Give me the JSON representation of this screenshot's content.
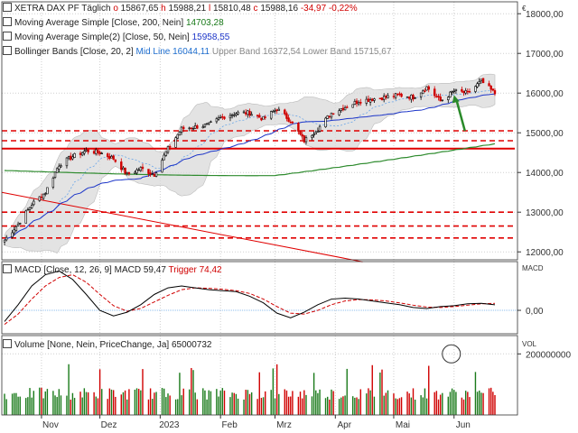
{
  "header": {
    "symbol": "XETRA DAX PF",
    "interval": "Täglich",
    "o_label": "o",
    "o_value": "15867,65",
    "h_label": "h",
    "h_value": "15988,21",
    "l_label": "l",
    "l_value": "15810,48",
    "c_label": "c",
    "c_value": "15988,16",
    "change": "-34,97",
    "change_pct": "-0,22%"
  },
  "legend": {
    "ma200_label": "Moving Average Simple",
    "ma200_params": "[Close, 200, Nein]",
    "ma200_value": "14703,28",
    "ma50_label": "Moving Average Simple(2)",
    "ma50_params": "[Close, 50, Nein]",
    "ma50_value": "15958,55",
    "bb_label": "Bollinger Bands",
    "bb_params": "[Close, 20, 2]",
    "bb_mid_label": "Mid Line",
    "bb_mid_value": "16044,11",
    "bb_upper_label": "Upper Band",
    "bb_upper_value": "16372,54",
    "bb_lower_label": "Lower Band",
    "bb_lower_value": "15715,67",
    "macd_label": "MACD",
    "macd_params": "[Close, 12, 26, 9]",
    "macd_name": "MACD",
    "macd_value": "59,47",
    "trigger_label": "Trigger",
    "trigger_value": "74,42",
    "vol_label": "Volume",
    "vol_params": "[None, Nein, PriceChange, Ja]",
    "vol_value": "65000732"
  },
  "axis": {
    "currency": "€",
    "price_ticks": [
      "18000,00",
      "17000,00",
      "16000,00",
      "15000,00",
      "14000,00",
      "13000,00",
      "12000,00"
    ],
    "macd_title": "MACD",
    "macd_tick": "0,00",
    "vol_title": "VOL",
    "vol_tick": "200000000",
    "x_labels": [
      "Nov",
      "Dez",
      "2023",
      "Feb",
      "Mrz",
      "Apr",
      "Mai",
      "Jun"
    ]
  },
  "colors": {
    "up": "#000000",
    "down": "#d00000",
    "ma200": "#2e8b2e",
    "ma50": "#1c35c8",
    "bb_fill": "#d9d9d9",
    "support": "#e00000",
    "macd": "#000000",
    "trigger": "#d00000",
    "arrow": "#2a8a2a",
    "grid": "#cfcfcf"
  },
  "chart_data": [
    {
      "type": "candlestick",
      "title": "XETRA DAX PF",
      "x_axis_type": "date",
      "x": [
        "2022-10-13",
        "2022-10-20",
        "2022-10-27",
        "2022-11-03",
        "2022-11-10",
        "2022-11-17",
        "2022-11-24",
        "2022-12-01",
        "2022-12-08",
        "2022-12-15",
        "2022-12-22",
        "2022-12-29",
        "2023-01-05",
        "2023-01-12",
        "2023-01-19",
        "2023-01-26",
        "2023-02-02",
        "2023-02-09",
        "2023-02-16",
        "2023-02-23",
        "2023-03-02",
        "2023-03-09",
        "2023-03-16",
        "2023-03-23",
        "2023-03-30",
        "2023-04-06",
        "2023-04-13",
        "2023-04-20",
        "2023-04-27",
        "2023-05-04",
        "2023-05-11",
        "2023-05-18",
        "2023-05-25",
        "2023-06-01",
        "2023-06-08",
        "2023-06-15",
        "2023-06-22"
      ],
      "close": [
        12300,
        12700,
        13200,
        13500,
        14200,
        14400,
        14550,
        14500,
        14350,
        13950,
        14100,
        13950,
        14600,
        15100,
        15150,
        15200,
        15400,
        15500,
        15500,
        15350,
        15600,
        15300,
        14800,
        15100,
        15500,
        15650,
        15800,
        15850,
        15900,
        15950,
        15900,
        16150,
        15800,
        16050,
        16000,
        16300,
        15988.16
      ],
      "ylim": [
        11800,
        18300
      ],
      "series": [
        {
          "name": "Moving Average Simple",
          "last": 14703.28
        },
        {
          "name": "Moving Average Simple(2)",
          "last": 15958.55
        },
        {
          "name": "Bollinger Bands Mid Line",
          "last": 16044.11
        },
        {
          "name": "Upper Band",
          "last": 16372.54
        },
        {
          "name": "Lower Band",
          "last": 15715.67
        }
      ],
      "horizontal_levels": {
        "solid": [
          14600
        ],
        "dashed": [
          15050,
          14800,
          13000,
          12650,
          12350
        ]
      }
    },
    {
      "type": "line",
      "title": "MACD",
      "params": "[Close, 12, 26, 9]",
      "series": [
        {
          "name": "MACD",
          "values": [
            -120,
            60,
            260,
            380,
            420,
            330,
            170,
            0,
            -60,
            -20,
            60,
            170,
            240,
            260,
            240,
            220,
            210,
            200,
            150,
            80,
            -30,
            -80,
            -20,
            60,
            120,
            130,
            120,
            100,
            80,
            60,
            30,
            20,
            40,
            50,
            70,
            75,
            59.47
          ]
        },
        {
          "name": "Trigger",
          "values": [
            -150,
            -40,
            120,
            260,
            350,
            380,
            300,
            170,
            50,
            -10,
            20,
            90,
            160,
            220,
            240,
            235,
            225,
            210,
            180,
            120,
            40,
            -30,
            -40,
            0,
            60,
            100,
            115,
            112,
            100,
            80,
            55,
            35,
            30,
            40,
            55,
            70,
            74.42
          ]
        }
      ]
    },
    {
      "type": "bar",
      "title": "Volume",
      "params": "[None, Nein, PriceChange, Ja]",
      "last": 65000732,
      "ylim": [
        0,
        260000000
      ]
    }
  ]
}
